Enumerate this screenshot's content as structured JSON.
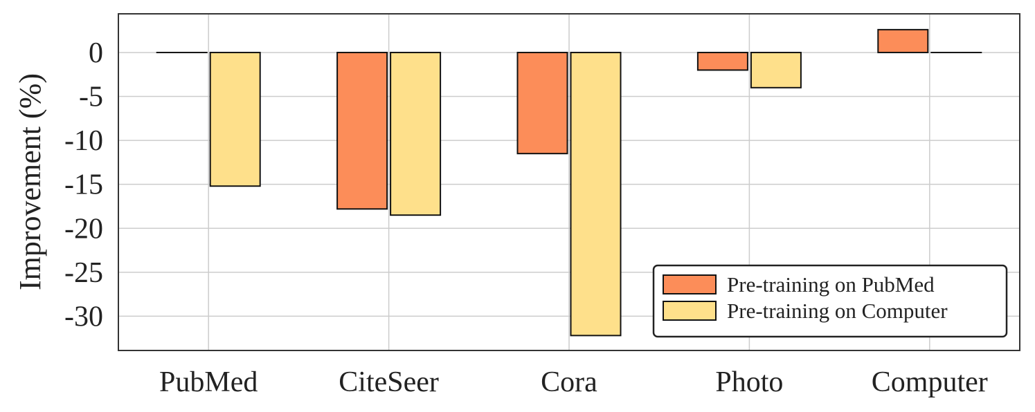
{
  "chart_data": {
    "type": "bar",
    "title": "",
    "xlabel": "",
    "ylabel": "Improvement (%)",
    "categories": [
      "PubMed",
      "CiteSeer",
      "Cora",
      "Photo",
      "Computer"
    ],
    "series": [
      {
        "name": "Pre-training on PubMed",
        "color": "#fc8d59",
        "values": [
          0,
          -17.8,
          -11.5,
          -2.0,
          2.6
        ]
      },
      {
        "name": "Pre-training on Computer",
        "color": "#fee08b",
        "values": [
          -15.2,
          -18.5,
          -32.2,
          -4.0,
          0
        ]
      }
    ],
    "ylim": [
      -33.9,
      4.4
    ],
    "yticks": [
      0,
      -5,
      -10,
      -15,
      -20,
      -25,
      -30
    ],
    "ytick_labels": [
      "0",
      "-5",
      "-10",
      "-15",
      "-20",
      "-25",
      "-30"
    ],
    "grid": true,
    "legend_position": "lower-right"
  }
}
